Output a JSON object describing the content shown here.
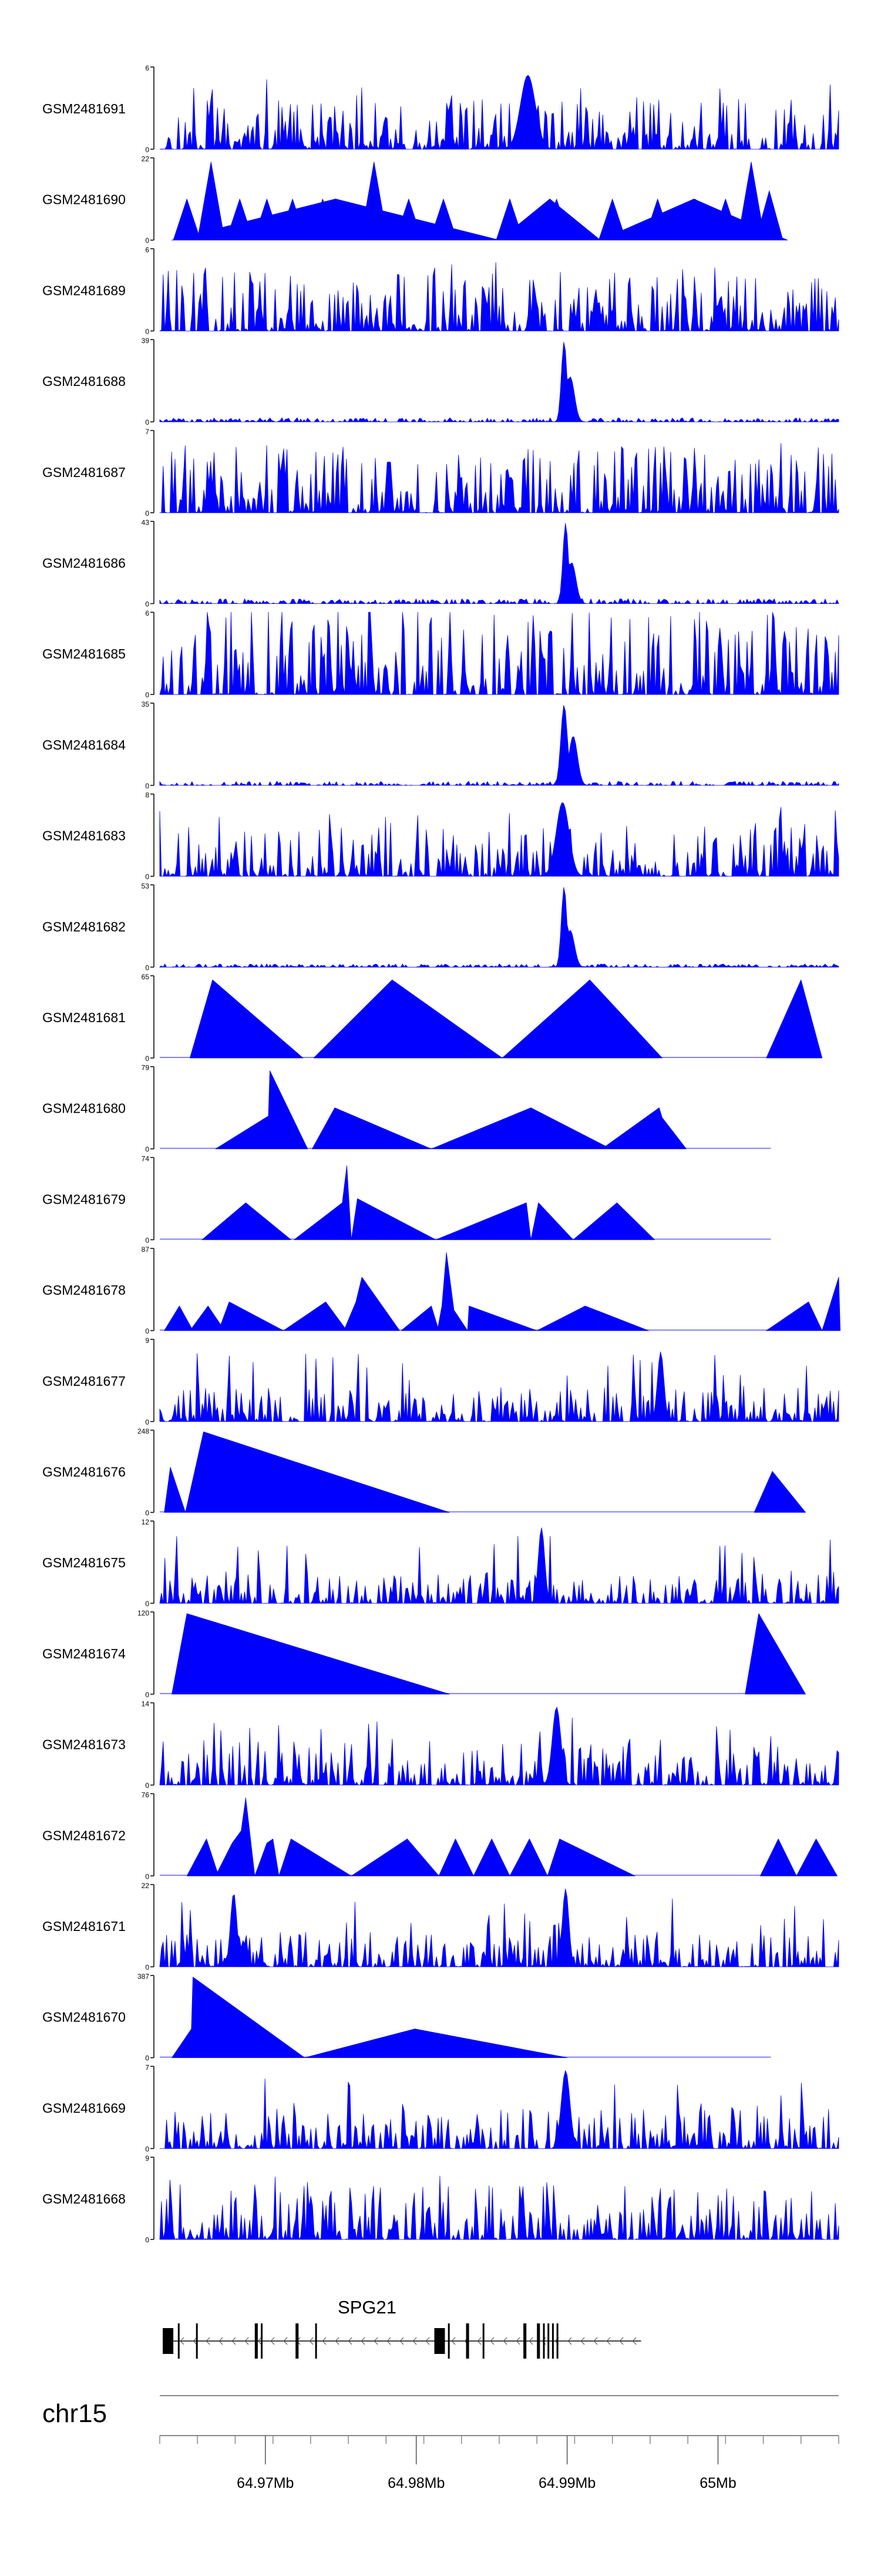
{
  "figure": {
    "chromosome": "chr15",
    "gene_label": "SPG21",
    "colors": {
      "signal": "#0000ff",
      "baseline": "#8080ff",
      "axis": "#000000",
      "gene": "#000000"
    }
  },
  "chart_data": {
    "type": "area",
    "x_range_mb": [
      64.963,
      65.008
    ],
    "xlim_mb": [
      64.963,
      65.008
    ],
    "x_axis_ticks": [
      {
        "value": 64.97,
        "label": "64.97Mb"
      },
      {
        "value": 64.98,
        "label": "64.98Mb"
      },
      {
        "value": 64.99,
        "label": "64.99Mb"
      },
      {
        "value": 65.0,
        "label": "65Mb"
      }
    ],
    "tracks": [
      {
        "name": "GSM2481691",
        "ymax": 6,
        "max_label": "6",
        "pattern": "noisy",
        "seed": 11,
        "level": 0.28,
        "peaks": [
          [
            64.9874,
            0.9,
            0.0007
          ]
        ]
      },
      {
        "name": "GSM2481690",
        "ymax": 22,
        "max_label": "22",
        "pattern": "spike",
        "seed": 12,
        "segments": [
          [
            64.9638,
            64.9855
          ],
          [
            64.9855,
            64.9922
          ],
          [
            64.9922,
            65.0046
          ]
        ],
        "spikes": [
          [
            64.9648,
            0.5
          ],
          [
            64.9664,
            0.95
          ],
          [
            64.9683,
            0.5
          ],
          [
            64.9701,
            0.5
          ],
          [
            64.9718,
            0.5
          ],
          [
            64.9738,
            0.5
          ],
          [
            64.9772,
            0.95
          ],
          [
            64.9795,
            0.5
          ],
          [
            64.9818,
            0.5
          ],
          [
            64.9862,
            0.5
          ],
          [
            64.9893,
            0.5
          ],
          [
            64.993,
            0.5
          ],
          [
            64.996,
            0.5
          ],
          [
            64.9985,
            0.5
          ],
          [
            65.0005,
            0.5
          ],
          [
            65.0022,
            0.95
          ],
          [
            65.0034,
            0.6
          ]
        ],
        "spike_width": 0.0009
      },
      {
        "name": "GSM2481689",
        "ymax": 6,
        "max_label": "6",
        "pattern": "noisy",
        "seed": 13,
        "level": 0.35,
        "peaks": []
      },
      {
        "name": "GSM2481688",
        "ymax": 39,
        "max_label": "39",
        "pattern": "lowpeak",
        "seed": 14,
        "level": 0.05,
        "peaks": [
          [
            64.9898,
            0.98,
            0.00025
          ],
          [
            64.9902,
            0.55,
            0.0004
          ]
        ]
      },
      {
        "name": "GSM2481687",
        "ymax": 7,
        "max_label": "7",
        "pattern": "noisy",
        "seed": 15,
        "level": 0.38,
        "peaks": []
      },
      {
        "name": "GSM2481686",
        "ymax": 43,
        "max_label": "43",
        "pattern": "lowpeak",
        "seed": 16,
        "level": 0.06,
        "peaks": [
          [
            64.9899,
            0.98,
            0.00025
          ],
          [
            64.9903,
            0.5,
            0.0004
          ]
        ]
      },
      {
        "name": "GSM2481685",
        "ymax": 6,
        "max_label": "6",
        "pattern": "noisy",
        "seed": 17,
        "level": 0.5,
        "peaks": []
      },
      {
        "name": "GSM2481684",
        "ymax": 35,
        "max_label": "35",
        "pattern": "lowpeak",
        "seed": 18,
        "level": 0.05,
        "peaks": [
          [
            64.9898,
            0.98,
            0.0003
          ],
          [
            64.9904,
            0.6,
            0.0004
          ]
        ]
      },
      {
        "name": "GSM2481683",
        "ymax": 8,
        "max_label": "8",
        "pattern": "noisy",
        "seed": 19,
        "level": 0.3,
        "peaks": [
          [
            64.9897,
            0.9,
            0.0006
          ]
        ]
      },
      {
        "name": "GSM2481682",
        "ymax": 53,
        "max_label": "53",
        "pattern": "lowpeak",
        "seed": 20,
        "level": 0.04,
        "peaks": [
          [
            64.9898,
            0.98,
            0.00025
          ],
          [
            64.9902,
            0.45,
            0.0004
          ]
        ]
      },
      {
        "name": "GSM2481681",
        "ymax": 65,
        "max_label": "65",
        "pattern": "sparse",
        "polys": [
          [
            [
              64.965,
              0
            ],
            [
              64.9665,
              0.95
            ],
            [
              64.9725,
              0
            ]
          ],
          [
            [
              64.9732,
              0
            ],
            [
              64.9784,
              0.95
            ],
            [
              64.9857,
              0
            ]
          ],
          [
            [
              64.9857,
              0
            ],
            [
              64.9915,
              0.95
            ],
            [
              64.9963,
              0
            ]
          ],
          [
            [
              65.0032,
              0
            ],
            [
              65.0055,
              0.95
            ],
            [
              65.0069,
              0
            ]
          ]
        ],
        "line_to": 65.0069
      },
      {
        "name": "GSM2481680",
        "ymax": 79,
        "max_label": "79",
        "pattern": "sparse",
        "polys": [
          [
            [
              64.9667,
              0
            ],
            [
              64.9702,
              0.4
            ],
            [
              64.9703,
              0.95
            ],
            [
              64.9728,
              0
            ]
          ],
          [
            [
              64.9731,
              0
            ],
            [
              64.9746,
              0.5
            ],
            [
              64.981,
              0
            ]
          ],
          [
            [
              64.981,
              0
            ],
            [
              64.9876,
              0.5
            ],
            [
              64.9929,
              0
            ]
          ],
          [
            [
              64.9923,
              0
            ],
            [
              64.9961,
              0.5
            ],
            [
              64.9963,
              0.38
            ],
            [
              64.9979,
              0
            ]
          ]
        ],
        "line_to": 65.0035
      },
      {
        "name": "GSM2481679",
        "ymax": 74,
        "max_label": "74",
        "pattern": "sparse",
        "polys": [
          [
            [
              64.9658,
              0
            ],
            [
              64.9687,
              0.45
            ],
            [
              64.9717,
              0
            ]
          ],
          [
            [
              64.9719,
              0
            ],
            [
              64.9751,
              0.45
            ],
            [
              64.9754,
              0.9
            ],
            [
              64.9757,
              0
            ]
          ],
          [
            [
              64.9757,
              0
            ],
            [
              64.9761,
              0.5
            ],
            [
              64.9813,
              0
            ]
          ],
          [
            [
              64.9813,
              0
            ],
            [
              64.9873,
              0.45
            ],
            [
              64.9876,
              0
            ]
          ],
          [
            [
              64.9876,
              0
            ],
            [
              64.9881,
              0.45
            ],
            [
              64.9904,
              0
            ]
          ],
          [
            [
              64.9904,
              0
            ],
            [
              64.9933,
              0.45
            ],
            [
              64.9958,
              0
            ]
          ]
        ],
        "line_to": 65.0035
      },
      {
        "name": "GSM2481678",
        "ymax": 87,
        "max_label": "87",
        "pattern": "sparse",
        "polys": [
          [
            [
              64.9633,
              0
            ],
            [
              64.9643,
              0.3
            ],
            [
              64.9652,
              0
            ]
          ],
          [
            [
              64.965,
              0
            ],
            [
              64.9662,
              0.3
            ],
            [
              64.9673,
              0
            ]
          ],
          [
            [
              64.9669,
              0
            ],
            [
              64.9676,
              0.35
            ],
            [
              64.9712,
              0
            ]
          ],
          [
            [
              64.9712,
              0
            ],
            [
              64.974,
              0.35
            ],
            [
              64.9754,
              0
            ]
          ],
          [
            [
              64.9752,
              0
            ],
            [
              64.976,
              0.35
            ],
            [
              64.9764,
              0.65
            ],
            [
              64.9789,
              0
            ]
          ],
          [
            [
              64.979,
              0
            ],
            [
              64.981,
              0.3
            ],
            [
              64.9815,
              0
            ]
          ],
          [
            [
              64.9814,
              0
            ],
            [
              64.9817,
              0.3
            ],
            [
              64.982,
              0.95
            ],
            [
              64.9825,
              0.25
            ],
            [
              64.9834,
              0
            ]
          ],
          [
            [
              64.9834,
              0
            ],
            [
              64.9835,
              0.3
            ],
            [
              64.988,
              0
            ]
          ],
          [
            [
              64.988,
              0
            ],
            [
              64.9912,
              0.3
            ],
            [
              64.9954,
              0
            ]
          ],
          [
            [
              65.0032,
              0
            ],
            [
              65.006,
              0.35
            ],
            [
              65.0069,
              0
            ]
          ],
          [
            [
              65.0069,
              0
            ],
            [
              65.008,
              0.65
            ],
            [
              65.0081,
              0
            ]
          ]
        ],
        "line_to": 65.0081
      },
      {
        "name": "GSM2481677",
        "ymax": 9,
        "max_label": "9",
        "pattern": "noisy",
        "seed": 23,
        "level": 0.2,
        "peaks": [
          [
            64.9626,
            0.9,
            0.0003
          ],
          [
            64.9962,
            0.85,
            0.0003
          ]
        ]
      },
      {
        "name": "GSM2481676",
        "ymax": 248,
        "max_label": "248",
        "pattern": "sparse",
        "polys": [
          [
            [
              64.9633,
              0
            ],
            [
              64.9637,
              0.55
            ],
            [
              64.9647,
              0
            ]
          ],
          [
            [
              64.9647,
              0
            ],
            [
              64.9659,
              0.98
            ],
            [
              64.9822,
              0
            ]
          ],
          [
            [
              65.0024,
              0
            ],
            [
              65.0036,
              0.5
            ],
            [
              65.0058,
              0
            ]
          ]
        ],
        "line_to": 65.0058
      },
      {
        "name": "GSM2481675",
        "ymax": 12,
        "max_label": "12",
        "pattern": "noisy",
        "seed": 25,
        "level": 0.18,
        "peaks": [
          [
            64.9883,
            0.92,
            0.0003
          ]
        ]
      },
      {
        "name": "GSM2481674",
        "ymax": 120,
        "max_label": "120",
        "pattern": "sparse",
        "polys": [
          [
            [
              64.9638,
              0
            ],
            [
              64.9648,
              0.98
            ],
            [
              64.9822,
              0
            ]
          ],
          [
            [
              65.0018,
              0
            ],
            [
              65.0027,
              0.98
            ],
            [
              65.0058,
              0
            ]
          ]
        ],
        "line_to": 65.0058
      },
      {
        "name": "GSM2481673",
        "ymax": 14,
        "max_label": "14",
        "pattern": "noisy",
        "seed": 27,
        "level": 0.25,
        "peaks": [
          [
            64.9893,
            0.95,
            0.0004
          ]
        ]
      },
      {
        "name": "GSM2481672",
        "ymax": 76,
        "max_label": "76",
        "pattern": "sparse",
        "polys": [
          [
            [
              64.9648,
              0
            ],
            [
              64.9661,
              0.45
            ],
            [
              64.9669,
              0
            ]
          ],
          [
            [
              64.9667,
              0
            ],
            [
              64.9678,
              0.4
            ],
            [
              64.9684,
              0.55
            ],
            [
              64.9687,
              0.95
            ],
            [
              64.9693,
              0
            ]
          ],
          [
            [
              64.9693,
              0
            ],
            [
              64.9701,
              0.4
            ],
            [
              64.9705,
              0.45
            ],
            [
              64.9709,
              0
            ]
          ],
          [
            [
              64.9709,
              0
            ],
            [
              64.9717,
              0.45
            ],
            [
              64.9757,
              0
            ]
          ],
          [
            [
              64.9757,
              0
            ],
            [
              64.9794,
              0.45
            ],
            [
              64.9815,
              0
            ]
          ],
          [
            [
              64.9815,
              0
            ],
            [
              64.9826,
              0.45
            ],
            [
              64.9838,
              0
            ]
          ],
          [
            [
              64.9838,
              0
            ],
            [
              64.985,
              0.45
            ],
            [
              64.9862,
              0
            ]
          ],
          [
            [
              64.9862,
              0
            ],
            [
              64.9875,
              0.45
            ],
            [
              64.9887,
              0
            ]
          ],
          [
            [
              64.9887,
              0
            ],
            [
              64.9895,
              0.45
            ],
            [
              64.9945,
              0
            ]
          ],
          [
            [
              65.0028,
              0
            ],
            [
              65.004,
              0.45
            ],
            [
              65.0052,
              0
            ]
          ],
          [
            [
              65.0052,
              0
            ],
            [
              65.0065,
              0.45
            ],
            [
              65.0079,
              0
            ]
          ]
        ],
        "line_to": 65.0079
      },
      {
        "name": "GSM2481671",
        "ymax": 22,
        "max_label": "22",
        "pattern": "noisy",
        "seed": 29,
        "level": 0.2,
        "peaks": [
          [
            64.9679,
            0.9,
            0.0003
          ],
          [
            64.9899,
            0.95,
            0.0003
          ]
        ]
      },
      {
        "name": "GSM2481670",
        "ymax": 387,
        "max_label": "387",
        "pattern": "sparse",
        "polys": [
          [
            [
              64.9638,
              0
            ],
            [
              64.9651,
              0.35
            ],
            [
              64.9652,
              0.98
            ],
            [
              64.9726,
              0
            ]
          ],
          [
            [
              64.9726,
              0
            ],
            [
              64.9799,
              0.35
            ],
            [
              64.99,
              0
            ]
          ]
        ],
        "line_to": 65.0035
      },
      {
        "name": "GSM2481669",
        "ymax": 7,
        "max_label": "7",
        "pattern": "noisy",
        "seed": 31,
        "level": 0.22,
        "peaks": [
          [
            64.9899,
            0.95,
            0.0004
          ]
        ]
      },
      {
        "name": "GSM2481668",
        "ymax": 9,
        "max_label": "9",
        "pattern": "noisy",
        "seed": 32,
        "level": 0.3,
        "peaks": []
      }
    ],
    "gene_model": {
      "name": "SPG21",
      "strand": "-",
      "start_mb": 64.9632,
      "end_mb": 64.9949,
      "exons": [
        [
          64.9632,
          64.9639
        ],
        [
          64.9642,
          64.9643
        ],
        [
          64.9654,
          64.9655
        ],
        [
          64.9693,
          64.9695
        ],
        [
          64.9697,
          64.9698
        ],
        [
          64.972,
          64.9722
        ],
        [
          64.9733,
          64.9734
        ],
        [
          64.9812,
          64.9819
        ],
        [
          64.9821,
          64.9822
        ],
        [
          64.9833,
          64.9835
        ],
        [
          64.9844,
          64.9845
        ],
        [
          64.9871,
          64.9873
        ],
        [
          64.988,
          64.9882
        ],
        [
          64.9884,
          64.9885
        ],
        [
          64.9887,
          64.9888
        ],
        [
          64.989,
          64.9891
        ],
        [
          64.9893,
          64.9894
        ]
      ]
    }
  }
}
